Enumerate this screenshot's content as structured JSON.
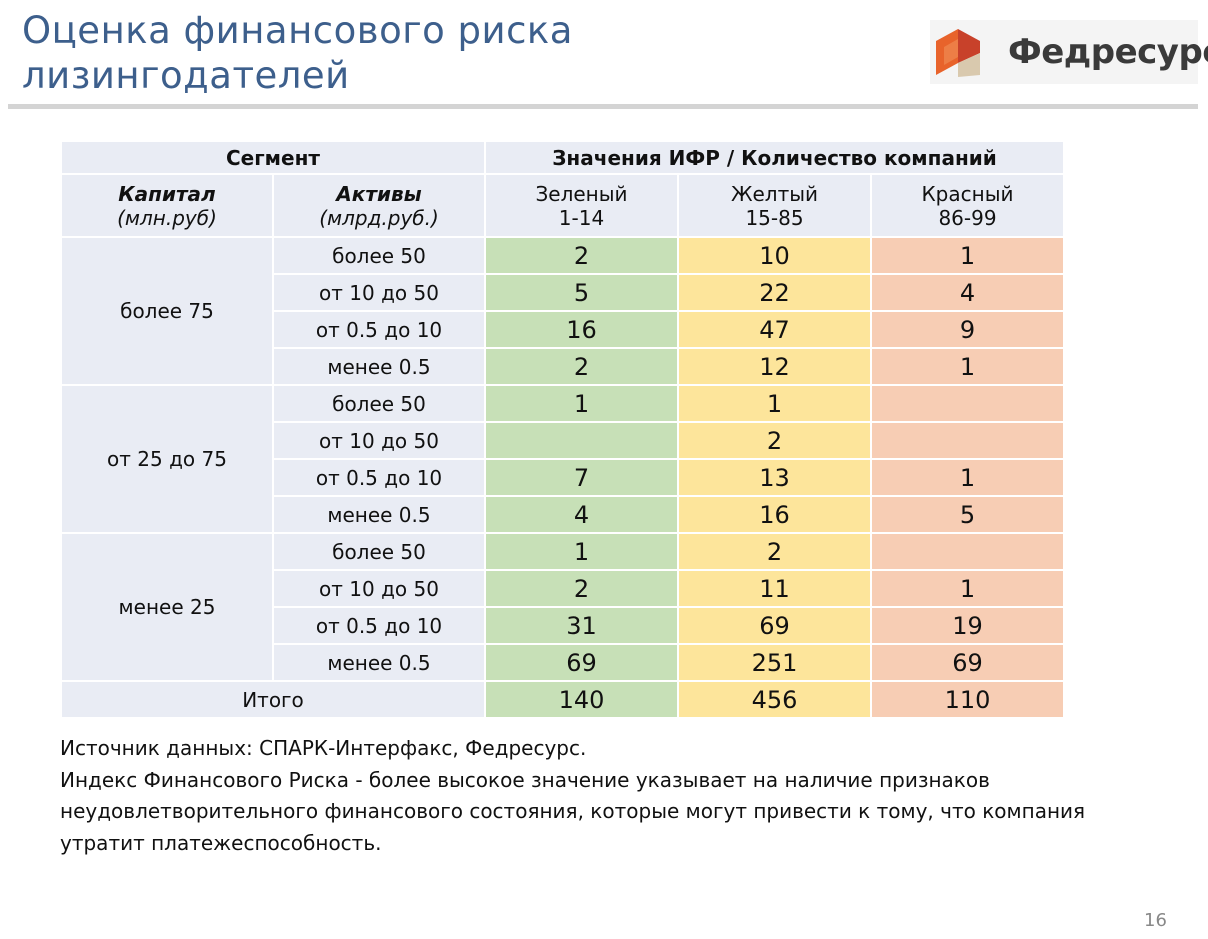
{
  "title": {
    "line1": "Оценка финансового риска",
    "line2": "лизингодателей"
  },
  "logo": {
    "text": "Федресурс",
    "colors": {
      "orange": "#e8632b",
      "red": "#c8412a",
      "beige": "#d9c9ae"
    }
  },
  "table": {
    "header": {
      "segment": "Сегмент",
      "values": "Значения ИФР / Количество  компаний"
    },
    "capital_header": {
      "label": "Капитал",
      "unit": "(млн.руб)"
    },
    "assets_header": {
      "label": "Активы",
      "unit": "(млрд.руб.)"
    },
    "columns": [
      {
        "name": "Зеленый",
        "range": "1-14",
        "color": "#c7e0b7"
      },
      {
        "name": "Желтый",
        "range": "15-85",
        "color": "#fde59b"
      },
      {
        "name": "Красный",
        "range": "86-99",
        "color": "#f7cdb4"
      }
    ],
    "groups": [
      {
        "capital": "более 75",
        "rows": [
          {
            "assets": "более 50",
            "green": "2",
            "yellow": "10",
            "red": "1"
          },
          {
            "assets": "от 10 до 50",
            "green": "5",
            "yellow": "22",
            "red": "4"
          },
          {
            "assets": "от 0.5 до 10",
            "green": "16",
            "yellow": "47",
            "red": "9"
          },
          {
            "assets": "менее 0.5",
            "green": "2",
            "yellow": "12",
            "red": "1"
          }
        ]
      },
      {
        "capital": "от 25 до 75",
        "rows": [
          {
            "assets": "более 50",
            "green": "1",
            "yellow": "1",
            "red": ""
          },
          {
            "assets": "от 10 до 50",
            "green": "",
            "yellow": "2",
            "red": ""
          },
          {
            "assets": "от 0.5 до 10",
            "green": "7",
            "yellow": "13",
            "red": "1"
          },
          {
            "assets": "менее 0.5",
            "green": "4",
            "yellow": "16",
            "red": "5"
          }
        ]
      },
      {
        "capital": "менее 25",
        "rows": [
          {
            "assets": "более 50",
            "green": "1",
            "yellow": "2",
            "red": ""
          },
          {
            "assets": "от 10 до 50",
            "green": "2",
            "yellow": "11",
            "red": "1"
          },
          {
            "assets": "от 0.5 до 10",
            "green": "31",
            "yellow": "69",
            "red": "19"
          },
          {
            "assets": "менее 0.5",
            "green": "69",
            "yellow": "251",
            "red": "69"
          }
        ]
      }
    ],
    "total": {
      "label": "Итого",
      "green": "140",
      "yellow": "456",
      "red": "110"
    }
  },
  "notes": {
    "source": "Источник данных: СПАРК-Интерфакс, Федресурс.",
    "definition": "Индекс Финансового Риска - более высокое значение указывает на наличие признаков неудовлетворительного финансового состояния, которые могут привести к тому, что компания утратит платежеспособность."
  },
  "page_number": "16"
}
